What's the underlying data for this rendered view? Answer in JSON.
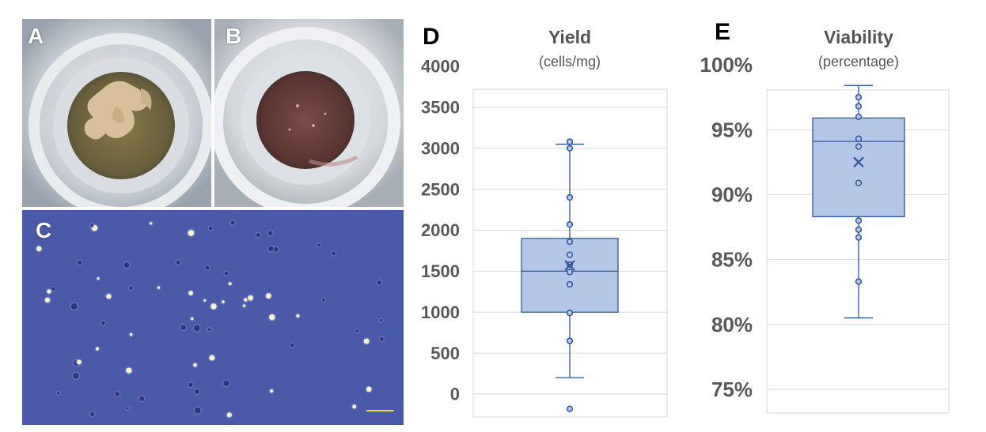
{
  "panels": {
    "a": "A",
    "b": "B",
    "c": "C",
    "d": "D",
    "e": "E"
  },
  "colors": {
    "box_fill": "#b4c7e7",
    "box_stroke": "#2f5597",
    "grid": "#d9d9d9",
    "axis_text": "#595959",
    "micro_bg": "#4a58a8"
  },
  "chart_data": [
    {
      "type": "box",
      "title": "Yield",
      "subtitle": "(cells/mg)",
      "ylim": [
        0,
        4000
      ],
      "yticks": [
        0,
        500,
        1000,
        1500,
        2000,
        2500,
        3000,
        3500,
        4000
      ],
      "tick_labels": [
        "0",
        "500",
        "1000",
        "1500",
        "2000",
        "2500",
        "3000",
        "3500",
        "4000"
      ],
      "grid": true,
      "whisker_low": 200,
      "q1": 1000,
      "median": 1500,
      "q3": 1900,
      "whisker_high": 3050,
      "mean": 1570,
      "points": [
        3080,
        3000,
        2400,
        2070,
        1860,
        1700,
        1580,
        1490,
        1340,
        990,
        650,
        -180
      ]
    },
    {
      "type": "box",
      "title": "Viability",
      "subtitle": "(percentage)",
      "ylim": [
        75,
        100
      ],
      "yticks": [
        75,
        80,
        85,
        90,
        95,
        100
      ],
      "tick_labels": [
        "75%",
        "80%",
        "85%",
        "90%",
        "95%",
        "100%"
      ],
      "grid": true,
      "whisker_low": 80.5,
      "q1": 88.3,
      "median": 94.1,
      "q3": 95.9,
      "whisker_high": 98.4,
      "mean": 92.5,
      "points": [
        97.5,
        96.8,
        96.0,
        94.3,
        93.7,
        90.9,
        88.0,
        87.3,
        86.7,
        83.3
      ]
    }
  ]
}
